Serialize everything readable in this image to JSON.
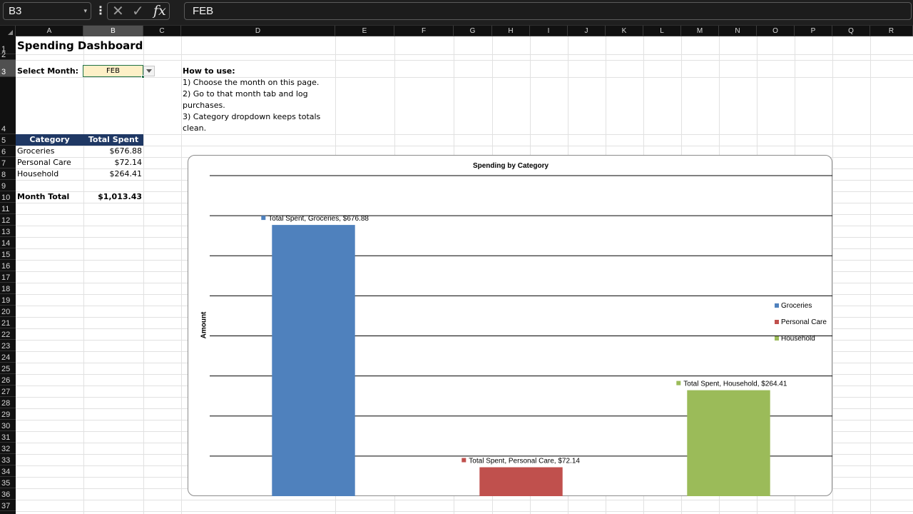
{
  "formula_bar": {
    "name_box": "B3",
    "cancel_icon": "✕",
    "enter_icon": "✓",
    "fx_label": "fx",
    "more_icon": "⋮",
    "formula": "FEB"
  },
  "columns": [
    "A",
    "B",
    "C",
    "D",
    "E",
    "F",
    "G",
    "H",
    "I",
    "J",
    "K",
    "L",
    "M",
    "N",
    "O",
    "P",
    "Q",
    "R"
  ],
  "selected_column": "B",
  "selected_row": "3",
  "rows": [
    "1",
    "2",
    "3",
    "4",
    "5",
    "6",
    "7",
    "8",
    "9",
    "10",
    "11",
    "12",
    "13",
    "14",
    "15",
    "16",
    "17",
    "18",
    "19",
    "20",
    "21",
    "22",
    "23",
    "24",
    "25",
    "26",
    "27",
    "28",
    "29",
    "30",
    "31",
    "32",
    "33",
    "34",
    "35",
    "36",
    "37"
  ],
  "sheet": {
    "title": "Spending Dashboard",
    "select_month_label": "Select Month:",
    "selected_month": "FEB",
    "how_to_title": "How to use:",
    "how_to_lines": [
      "1) Choose the month on this page.",
      "2) Go to that month tab and log",
      "purchases.",
      "3) Category dropdown keeps totals",
      "clean."
    ],
    "table": {
      "headers": [
        "Category",
        "Total Spent"
      ],
      "rows": [
        {
          "category": "Groceries",
          "total": "$676.88"
        },
        {
          "category": "Personal Care",
          "total": "$72.14"
        },
        {
          "category": "Household",
          "total": "$264.41"
        }
      ],
      "total_label": "Month Total",
      "total_value": "$1,013.43"
    }
  },
  "chart_data": {
    "type": "bar",
    "title": "Spending by Category",
    "ylabel": "Amount",
    "xlabel": "",
    "categories": [
      "Groceries",
      "Personal Care",
      "Household"
    ],
    "values": [
      676.88,
      72.14,
      264.41
    ],
    "data_labels": [
      "Total Spent, Groceries, $676.88",
      "Total Spent, Personal Care, $72.14",
      "Total Spent, Household, $264.41"
    ],
    "colors": [
      "#4f81bd",
      "#c0504d",
      "#9bbb59"
    ],
    "ylim": [
      0,
      800
    ],
    "gridlines": [
      100,
      200,
      300,
      400,
      500,
      600,
      700,
      800
    ],
    "grid": true,
    "legend": "right",
    "legend_entries": [
      "Groceries",
      "Personal Care",
      "Household"
    ]
  }
}
